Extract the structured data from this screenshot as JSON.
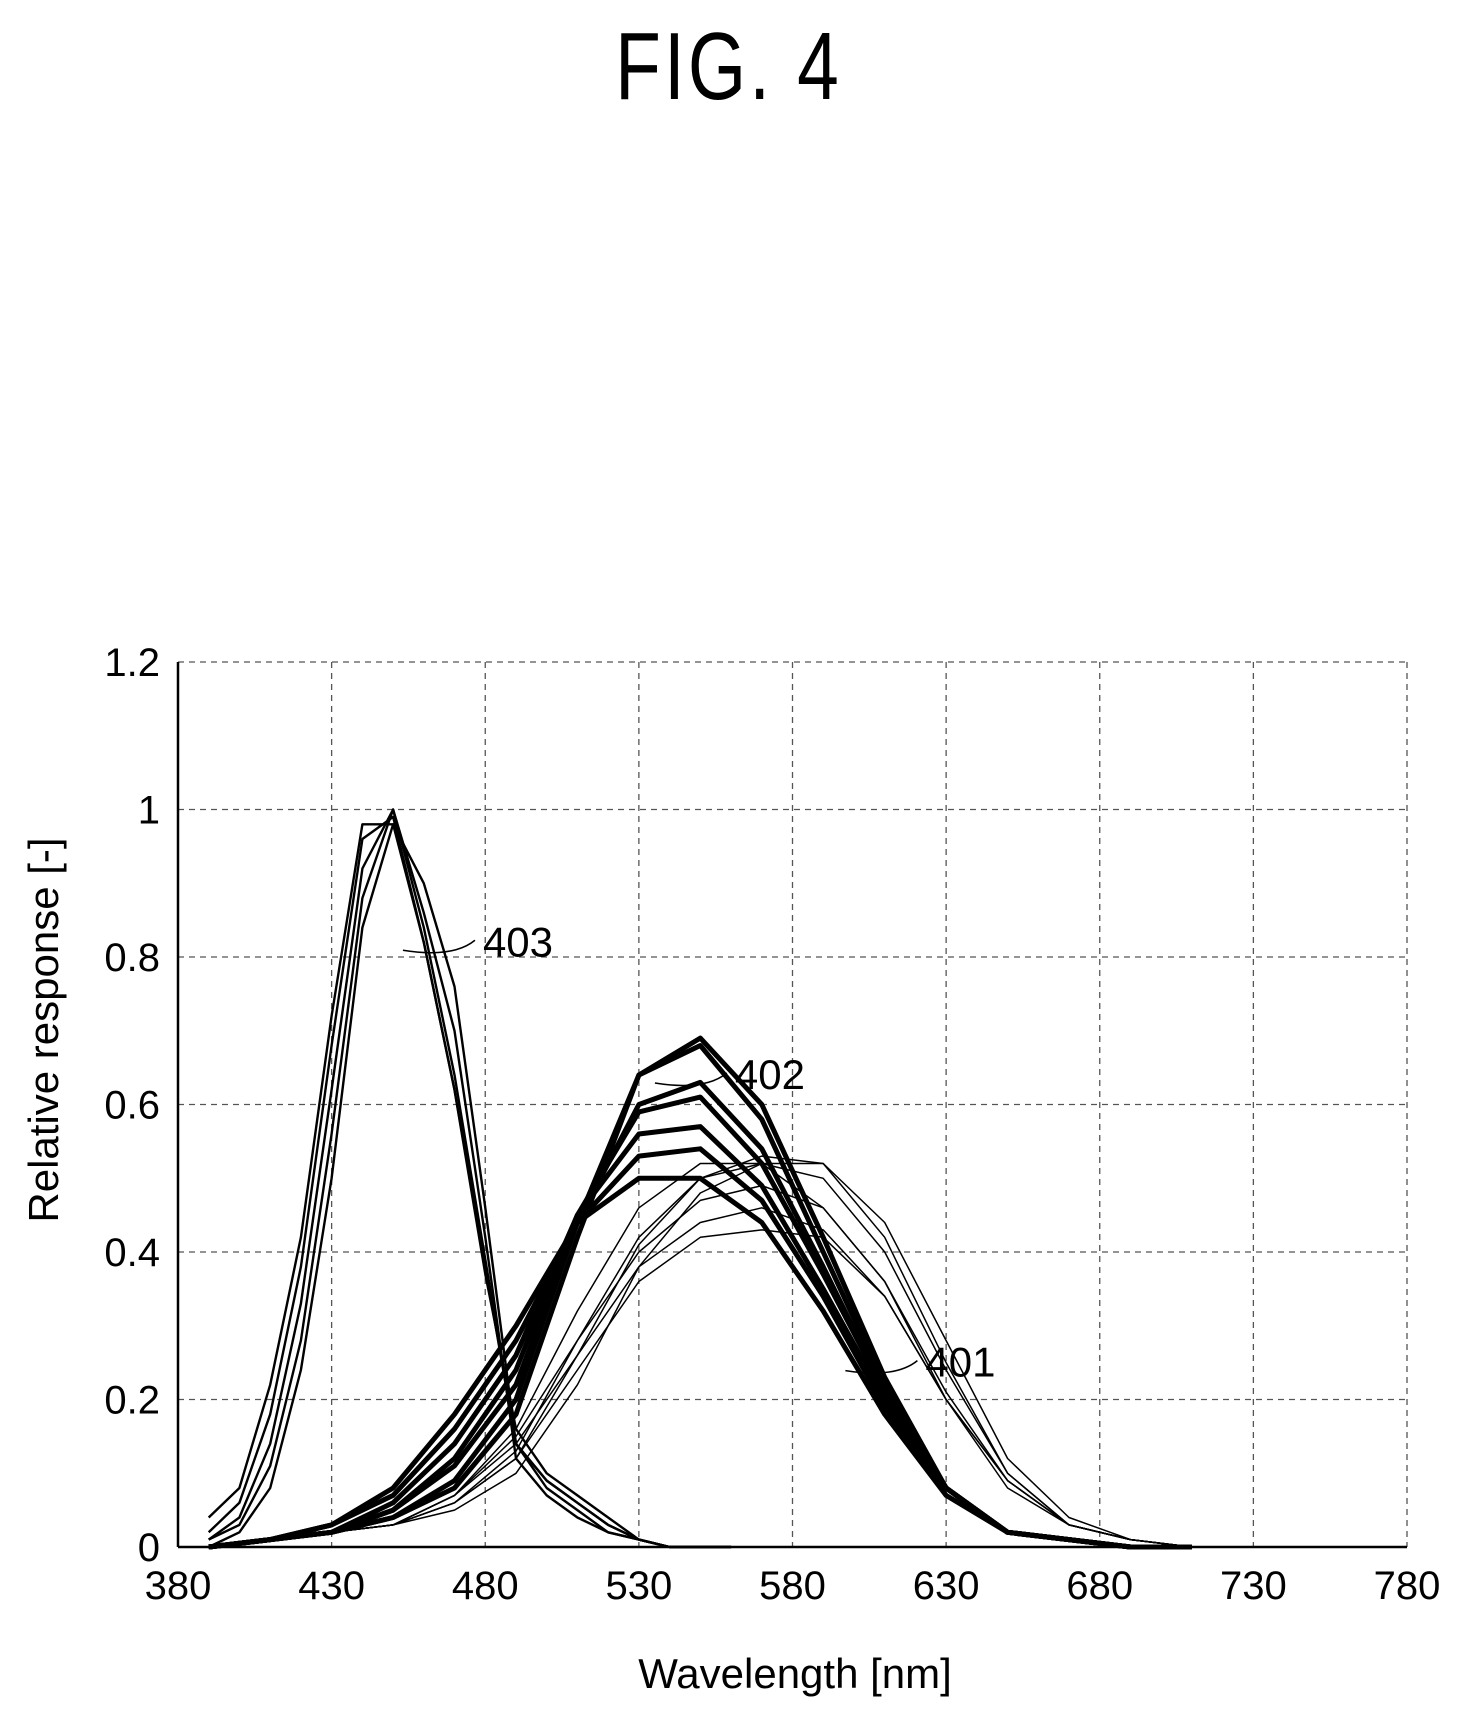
{
  "figure_label": "FIG. 4",
  "chart_data": {
    "type": "line",
    "title": "",
    "xlabel": "Wavelength [nm]",
    "ylabel": "Relative response [-]",
    "xlim": [
      380,
      780
    ],
    "ylim": [
      0,
      1.2
    ],
    "xticks": [
      380,
      430,
      480,
      530,
      580,
      630,
      680,
      730,
      780
    ],
    "yticks": [
      0,
      0.2,
      0.4,
      0.6,
      0.8,
      1,
      1.2
    ],
    "ytick_labels": [
      "0",
      "0.2",
      "0.4",
      "0.6",
      "0.8",
      "1",
      "1.2"
    ],
    "grid": true,
    "annotations": [
      {
        "text": "403",
        "group": "blue",
        "x": 476,
        "y": 0.82
      },
      {
        "text": "402",
        "group": "green",
        "x": 558,
        "y": 0.64
      },
      {
        "text": "401",
        "group": "red",
        "x": 620,
        "y": 0.25
      }
    ],
    "series": [
      {
        "group": "blue",
        "x": [
          390,
          400,
          410,
          420,
          430,
          440,
          450,
          460,
          470,
          480,
          490,
          500,
          510,
          520,
          530,
          540,
          550,
          560
        ],
        "y": [
          0.04,
          0.08,
          0.22,
          0.42,
          0.72,
          0.98,
          0.98,
          0.82,
          0.62,
          0.38,
          0.14,
          0.09,
          0.06,
          0.03,
          0.01,
          0,
          0,
          0
        ]
      },
      {
        "group": "blue",
        "x": [
          390,
          400,
          410,
          420,
          430,
          440,
          450,
          460,
          470,
          480,
          490,
          500,
          510,
          520,
          530,
          540,
          550,
          560
        ],
        "y": [
          0.02,
          0.06,
          0.18,
          0.38,
          0.68,
          0.96,
          0.99,
          0.82,
          0.62,
          0.37,
          0.16,
          0.1,
          0.07,
          0.04,
          0.01,
          0,
          0,
          0
        ]
      },
      {
        "group": "blue",
        "x": [
          390,
          400,
          410,
          420,
          430,
          440,
          450,
          460,
          470,
          480,
          490,
          500,
          510,
          520,
          530,
          540,
          550,
          560
        ],
        "y": [
          0.01,
          0.04,
          0.14,
          0.33,
          0.62,
          0.92,
          1.0,
          0.84,
          0.64,
          0.39,
          0.14,
          0.09,
          0.06,
          0.03,
          0.01,
          0,
          0,
          0
        ]
      },
      {
        "group": "blue",
        "x": [
          390,
          400,
          410,
          420,
          430,
          440,
          450,
          460,
          470,
          480,
          490,
          500,
          510,
          520,
          530,
          540,
          550,
          560
        ],
        "y": [
          0.01,
          0.03,
          0.11,
          0.28,
          0.56,
          0.88,
          1.0,
          0.86,
          0.7,
          0.42,
          0.12,
          0.07,
          0.04,
          0.02,
          0.01,
          0,
          0,
          0
        ]
      },
      {
        "group": "blue",
        "x": [
          390,
          400,
          410,
          420,
          430,
          440,
          450,
          460,
          470,
          480,
          490,
          500,
          510,
          520,
          530,
          540,
          550,
          560
        ],
        "y": [
          0.0,
          0.02,
          0.08,
          0.24,
          0.5,
          0.84,
          0.98,
          0.9,
          0.76,
          0.46,
          0.14,
          0.08,
          0.05,
          0.02,
          0.01,
          0,
          0,
          0
        ]
      },
      {
        "group": "green",
        "x": [
          390,
          410,
          430,
          450,
          470,
          490,
          510,
          530,
          550,
          570,
          590,
          610,
          630,
          650,
          670,
          690,
          710
        ],
        "y": [
          0,
          0.01,
          0.03,
          0.08,
          0.18,
          0.3,
          0.44,
          0.5,
          0.5,
          0.44,
          0.32,
          0.18,
          0.07,
          0.02,
          0.01,
          0,
          0
        ]
      },
      {
        "group": "green",
        "x": [
          390,
          410,
          430,
          450,
          470,
          490,
          510,
          530,
          550,
          570,
          590,
          610,
          630,
          650,
          670,
          690,
          710
        ],
        "y": [
          0,
          0.01,
          0.03,
          0.07,
          0.16,
          0.28,
          0.44,
          0.53,
          0.54,
          0.47,
          0.34,
          0.19,
          0.08,
          0.02,
          0.01,
          0,
          0
        ]
      },
      {
        "group": "green",
        "x": [
          390,
          410,
          430,
          450,
          470,
          490,
          510,
          530,
          550,
          570,
          590,
          610,
          630,
          650,
          670,
          690,
          710
        ],
        "y": [
          0,
          0.01,
          0.02,
          0.06,
          0.14,
          0.26,
          0.45,
          0.56,
          0.57,
          0.49,
          0.35,
          0.2,
          0.08,
          0.02,
          0.01,
          0,
          0
        ]
      },
      {
        "group": "green",
        "x": [
          390,
          410,
          430,
          450,
          470,
          490,
          510,
          530,
          550,
          570,
          590,
          610,
          630,
          650,
          670,
          690,
          710
        ],
        "y": [
          0,
          0.01,
          0.02,
          0.05,
          0.12,
          0.24,
          0.45,
          0.59,
          0.61,
          0.52,
          0.37,
          0.21,
          0.08,
          0.02,
          0.01,
          0,
          0
        ]
      },
      {
        "group": "green",
        "x": [
          390,
          410,
          430,
          450,
          470,
          490,
          510,
          530,
          550,
          570,
          590,
          610,
          630,
          650,
          670,
          690,
          710
        ],
        "y": [
          0,
          0.01,
          0.02,
          0.05,
          0.11,
          0.22,
          0.44,
          0.6,
          0.63,
          0.54,
          0.38,
          0.21,
          0.08,
          0.02,
          0.01,
          0,
          0
        ]
      },
      {
        "group": "green",
        "x": [
          390,
          410,
          430,
          450,
          470,
          490,
          510,
          530,
          550,
          570,
          590,
          610,
          630,
          650,
          670,
          690,
          710
        ],
        "y": [
          0,
          0.01,
          0.02,
          0.04,
          0.09,
          0.2,
          0.44,
          0.64,
          0.68,
          0.58,
          0.4,
          0.22,
          0.08,
          0.02,
          0.01,
          0,
          0
        ]
      },
      {
        "group": "green",
        "x": [
          390,
          410,
          430,
          450,
          470,
          490,
          510,
          530,
          550,
          570,
          590,
          610,
          630,
          650,
          670,
          690,
          710
        ],
        "y": [
          0,
          0.01,
          0.02,
          0.04,
          0.08,
          0.18,
          0.42,
          0.64,
          0.69,
          0.6,
          0.42,
          0.23,
          0.08,
          0.02,
          0.01,
          0,
          0
        ]
      },
      {
        "group": "red",
        "x": [
          390,
          410,
          430,
          450,
          470,
          490,
          510,
          530,
          550,
          570,
          590,
          610,
          630,
          650,
          670,
          690,
          710,
          730
        ],
        "y": [
          0,
          0.01,
          0.02,
          0.03,
          0.06,
          0.12,
          0.24,
          0.36,
          0.42,
          0.43,
          0.42,
          0.34,
          0.2,
          0.09,
          0.03,
          0.01,
          0,
          0
        ]
      },
      {
        "group": "red",
        "x": [
          390,
          410,
          430,
          450,
          470,
          490,
          510,
          530,
          550,
          570,
          590,
          610,
          630,
          650,
          670,
          690,
          710,
          730
        ],
        "y": [
          0,
          0.01,
          0.02,
          0.03,
          0.07,
          0.14,
          0.26,
          0.38,
          0.44,
          0.46,
          0.43,
          0.34,
          0.2,
          0.09,
          0.03,
          0.01,
          0,
          0
        ]
      },
      {
        "group": "red",
        "x": [
          390,
          410,
          430,
          450,
          470,
          490,
          510,
          530,
          550,
          570,
          590,
          610,
          630,
          650,
          670,
          690,
          710,
          730
        ],
        "y": [
          0,
          0.01,
          0.02,
          0.03,
          0.07,
          0.15,
          0.28,
          0.4,
          0.47,
          0.49,
          0.46,
          0.36,
          0.21,
          0.09,
          0.03,
          0.01,
          0,
          0
        ]
      },
      {
        "group": "red",
        "x": [
          390,
          410,
          430,
          450,
          470,
          490,
          510,
          530,
          550,
          570,
          590,
          610,
          630,
          650,
          670,
          690,
          710,
          730
        ],
        "y": [
          0,
          0.01,
          0.02,
          0.03,
          0.06,
          0.13,
          0.28,
          0.42,
          0.5,
          0.52,
          0.5,
          0.4,
          0.24,
          0.1,
          0.03,
          0.01,
          0,
          0
        ]
      },
      {
        "group": "red",
        "x": [
          390,
          410,
          430,
          450,
          470,
          490,
          510,
          530,
          550,
          570,
          590,
          610,
          630,
          650,
          670,
          690,
          710,
          730
        ],
        "y": [
          0,
          0.01,
          0.02,
          0.03,
          0.06,
          0.12,
          0.26,
          0.41,
          0.5,
          0.53,
          0.52,
          0.42,
          0.25,
          0.1,
          0.03,
          0.01,
          0,
          0
        ]
      },
      {
        "group": "red",
        "x": [
          390,
          410,
          430,
          450,
          470,
          490,
          510,
          530,
          550,
          570,
          590,
          610,
          630,
          650,
          670,
          690,
          710,
          730
        ],
        "y": [
          0,
          0.01,
          0.02,
          0.03,
          0.05,
          0.1,
          0.22,
          0.38,
          0.48,
          0.52,
          0.52,
          0.44,
          0.28,
          0.12,
          0.04,
          0.01,
          0,
          0
        ]
      },
      {
        "group": "red",
        "x": [
          390,
          410,
          430,
          450,
          470,
          490,
          510,
          530,
          550,
          570,
          590,
          610,
          630,
          650,
          670,
          690,
          710,
          730
        ],
        "y": [
          0,
          0.01,
          0.02,
          0.03,
          0.07,
          0.16,
          0.32,
          0.46,
          0.52,
          0.52,
          0.46,
          0.36,
          0.2,
          0.08,
          0.03,
          0.01,
          0,
          0
        ]
      }
    ]
  }
}
